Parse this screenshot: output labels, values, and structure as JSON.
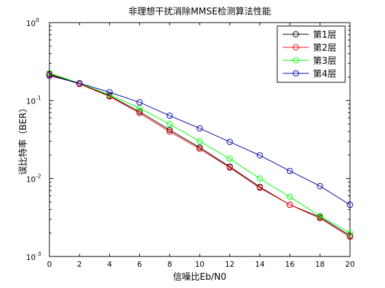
{
  "chart_data": {
    "type": "line",
    "title": "非理想干扰消除MMSE检测算法性能",
    "xlabel": "信噪比Eb/N0",
    "ylabel": "误比特率（BER）",
    "x": [
      0,
      2,
      4,
      6,
      8,
      10,
      12,
      14,
      16,
      18,
      20
    ],
    "xlim": [
      0,
      20
    ],
    "ylim": [
      0.001,
      1
    ],
    "yscale": "log",
    "grid": false,
    "legend_position": "top-right",
    "x_ticks": [
      "0",
      "2",
      "4",
      "6",
      "8",
      "10",
      "12",
      "14",
      "16",
      "18",
      "20"
    ],
    "y_ticks": [
      {
        "base": "10",
        "exp": "0",
        "value": 1
      },
      {
        "base": "10",
        "exp": "-1",
        "value": 0.1
      },
      {
        "base": "10",
        "exp": "-2",
        "value": 0.01
      },
      {
        "base": "10",
        "exp": "-3",
        "value": 0.001
      }
    ],
    "series": [
      {
        "name": "第1层",
        "color": "#000000",
        "values": [
          0.22,
          0.165,
          0.115,
          0.072,
          0.042,
          0.025,
          0.0142,
          0.0078,
          0.0046,
          0.0032,
          0.00185
        ]
      },
      {
        "name": "第2层",
        "color": "#ff0000",
        "values": [
          0.215,
          0.163,
          0.113,
          0.069,
          0.04,
          0.024,
          0.0138,
          0.0076,
          0.0046,
          0.0031,
          0.00178
        ]
      },
      {
        "name": "第3层",
        "color": "#00ff00",
        "values": [
          0.225,
          0.167,
          0.118,
          0.08,
          0.05,
          0.03,
          0.018,
          0.01,
          0.0058,
          0.0033,
          0.002
        ]
      },
      {
        "name": "第4层",
        "color": "#0000aa",
        "values": [
          0.208,
          0.167,
          0.128,
          0.095,
          0.064,
          0.044,
          0.0295,
          0.0198,
          0.0125,
          0.008,
          0.0046
        ]
      }
    ]
  }
}
